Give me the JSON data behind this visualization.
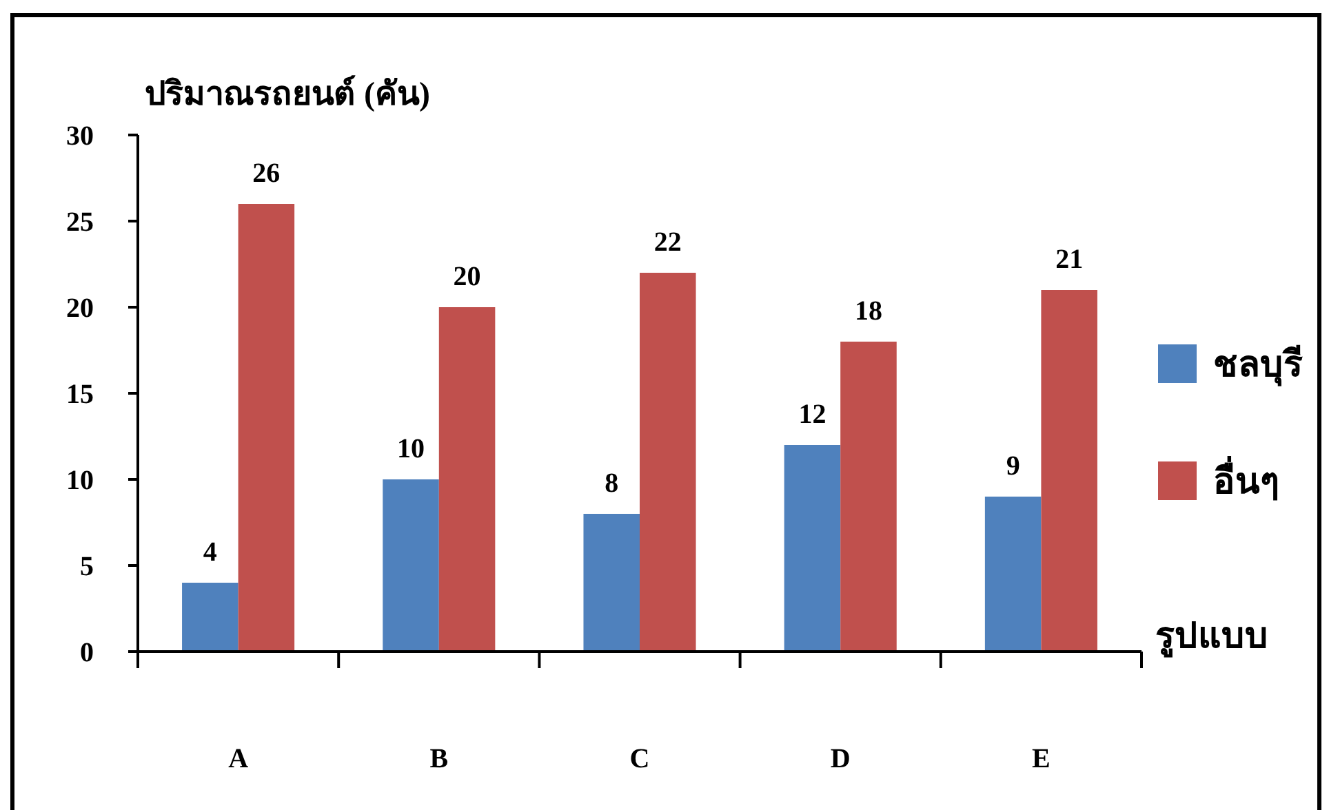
{
  "chart_data": {
    "type": "bar",
    "ylabel": "ปริมาณรถยนต์ (คัน)",
    "xlabel": "รูปแบบ",
    "categories": [
      "A",
      "B",
      "C",
      "D",
      "E"
    ],
    "series": [
      {
        "name": "ชลบุรี",
        "color": "#4f81bd",
        "values": [
          4,
          10,
          8,
          12,
          9
        ]
      },
      {
        "name": "อื่นๆ",
        "color": "#c0504d",
        "values": [
          26,
          20,
          22,
          18,
          21
        ]
      }
    ],
    "ylim": [
      0,
      30
    ],
    "yticks": [
      0,
      5,
      10,
      15,
      20,
      25,
      30
    ],
    "data_labels": true,
    "legend": "right",
    "grid": false
  }
}
